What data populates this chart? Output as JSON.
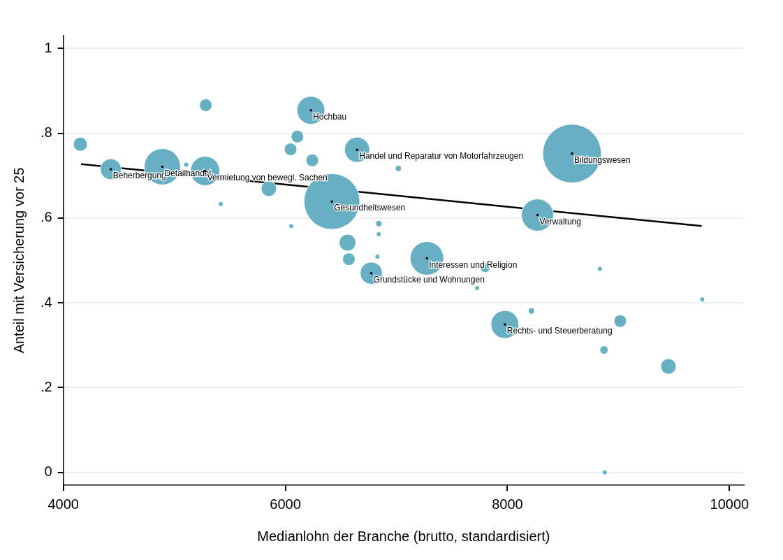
{
  "chart_data": {
    "type": "bubble",
    "xlabel": "Medianlohn der Branche (brutto, standardisiert)",
    "ylabel": "Anteil mit Versicherung vor 25",
    "xlim": [
      4000,
      10130
    ],
    "xticks": [
      4000,
      6000,
      8000,
      10000
    ],
    "ylim": [
      -0.03,
      1.03
    ],
    "yticks": [
      0,
      {
        "value": 0.2,
        "label": ".2"
      },
      {
        "value": 0.4,
        "label": ".4"
      },
      {
        "value": 0.6,
        "label": ".6"
      },
      {
        "value": 0.8,
        "label": ".8"
      },
      1
    ],
    "grid": "y",
    "legend": false,
    "series": [
      {
        "type": "bubble",
        "color": "#67b0c3",
        "x": [
          4153,
          4428,
          4892,
          5106,
          5283,
          5277,
          5418,
          5851,
          6053,
          6047,
          6108,
          6242,
          6230,
          6419,
          6560,
          6572,
          6646,
          6841,
          6841,
          6829,
          6774,
          7018,
          7275,
          7800,
          7727,
          7977,
          8216,
          8271,
          8582,
          8833,
          8870,
          9016,
          9755,
          9450,
          8876
        ],
        "values": [
          0.774,
          0.715,
          0.721,
          0.726,
          0.866,
          0.711,
          0.633,
          0.669,
          0.581,
          0.762,
          0.792,
          0.736,
          0.854,
          0.639,
          0.542,
          0.503,
          0.761,
          0.587,
          0.562,
          0.509,
          0.47,
          0.717,
          0.505,
          0.483,
          0.435,
          0.349,
          0.381,
          0.607,
          0.752,
          0.48,
          0.289,
          0.357,
          0.408,
          0.25,
          0.0
        ],
        "sizes": [
          0.057,
          0.128,
          0.383,
          0.005,
          0.046,
          0.25,
          0.005,
          0.069,
          0.005,
          0.046,
          0.046,
          0.046,
          0.227,
          0.907,
          0.082,
          0.046,
          0.184,
          0.009,
          0.005,
          0.005,
          0.145,
          0.009,
          0.327,
          0.028,
          0.005,
          0.227,
          0.009,
          0.3,
          1,
          0.005,
          0.02,
          0.046,
          0.005,
          0.069,
          0.005
        ]
      },
      {
        "type": "line",
        "color": "#000000",
        "x": [
          4160,
          9750
        ],
        "values": [
          0.727,
          0.581
        ]
      }
    ],
    "annotations": [
      {
        "text": "Beherbergung",
        "x": 4428,
        "y": 0.715
      },
      {
        "text": "Detailhandel",
        "x": 4892,
        "y": 0.721
      },
      {
        "text": "Vermietung von bewegl. Sachen",
        "x": 5277,
        "y": 0.711
      },
      {
        "text": "Hochbau",
        "x": 6230,
        "y": 0.854
      },
      {
        "text": "Gesundheitswesen",
        "x": 6419,
        "y": 0.639
      },
      {
        "text": "Handel und Reparatur von Motorfahrzeugen",
        "x": 6646,
        "y": 0.761
      },
      {
        "text": "Grundstücke und Wohnungen",
        "x": 6774,
        "y": 0.47
      },
      {
        "text": "Interessen und Religion",
        "x": 7275,
        "y": 0.505
      },
      {
        "text": "Rechts- und Steuerberatung",
        "x": 7977,
        "y": 0.349
      },
      {
        "text": "Verwaltung",
        "x": 8271,
        "y": 0.607
      },
      {
        "text": "Bildungswesen",
        "x": 8582,
        "y": 0.752
      }
    ]
  }
}
